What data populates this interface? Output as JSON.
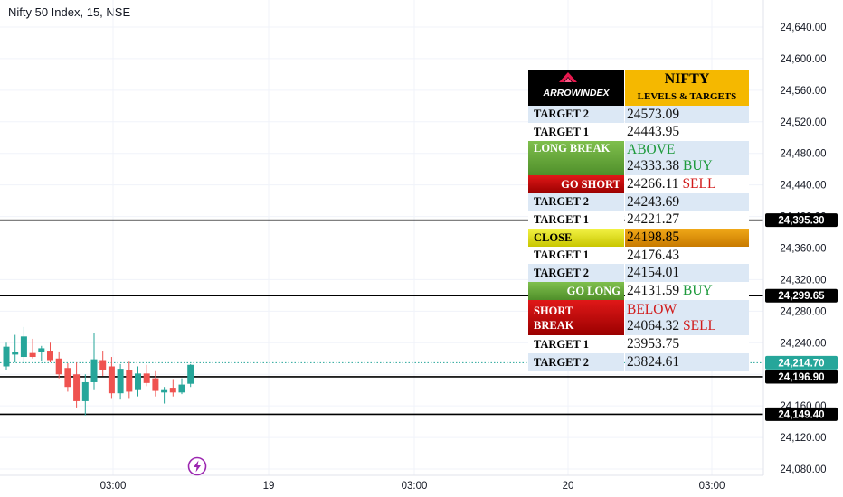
{
  "header": {
    "title": "Nifty 50 Index, 15, NSE"
  },
  "chart_data": {
    "type": "candlestick",
    "title": "Nifty 50 Index, 15, NSE",
    "y_axis": {
      "range": [
        24060,
        24660
      ],
      "ticks": [
        "24,640.00",
        "24,600.00",
        "24,560.00",
        "24,520.00",
        "24,480.00",
        "24,440.00",
        "24,400.00",
        "24,360.00",
        "24,320.00",
        "24,280.00",
        "24,240.00",
        "24,200.00",
        "24,160.00",
        "24,120.00",
        "24,080.00"
      ]
    },
    "x_axis": {
      "ticks": [
        "03:00",
        "19",
        "03:00",
        "20",
        "03:00"
      ]
    },
    "price_badges": [
      {
        "label": "24,395.30",
        "value": 24395.3,
        "color": "#000000"
      },
      {
        "label": "24,299.65",
        "value": 24299.65,
        "color": "#000000"
      },
      {
        "label": "24,214.70",
        "value": 24214.7,
        "color": "#26a69a"
      },
      {
        "label": "24,196.90",
        "value": 24196.9,
        "color": "#000000"
      },
      {
        "label": "24,149.40",
        "value": 24149.4,
        "color": "#000000"
      }
    ],
    "horizontal_lines": [
      24395.3,
      24299.65,
      24196.9,
      24149.4
    ],
    "last_price_line": 24214.7,
    "candles": [
      {
        "o": 24210,
        "h": 24240,
        "l": 24205,
        "c": 24235
      },
      {
        "o": 24225,
        "h": 24250,
        "l": 24215,
        "c": 24228
      },
      {
        "o": 24222,
        "h": 24260,
        "l": 24215,
        "c": 24248
      },
      {
        "o": 24227,
        "h": 24245,
        "l": 24220,
        "c": 24222
      },
      {
        "o": 24228,
        "h": 24236,
        "l": 24217,
        "c": 24233
      },
      {
        "o": 24230,
        "h": 24240,
        "l": 24215,
        "c": 24218
      },
      {
        "o": 24220,
        "h": 24229,
        "l": 24195,
        "c": 24200
      },
      {
        "o": 24208,
        "h": 24214,
        "l": 24178,
        "c": 24184
      },
      {
        "o": 24200,
        "h": 24215,
        "l": 24158,
        "c": 24166
      },
      {
        "o": 24166,
        "h": 24200,
        "l": 24148,
        "c": 24190
      },
      {
        "o": 24190,
        "h": 24252,
        "l": 24180,
        "c": 24219
      },
      {
        "o": 24218,
        "h": 24230,
        "l": 24198,
        "c": 24206
      },
      {
        "o": 24210,
        "h": 24222,
        "l": 24170,
        "c": 24176
      },
      {
        "o": 24176,
        "h": 24213,
        "l": 24168,
        "c": 24207
      },
      {
        "o": 24205,
        "h": 24216,
        "l": 24170,
        "c": 24178
      },
      {
        "o": 24180,
        "h": 24210,
        "l": 24172,
        "c": 24201
      },
      {
        "o": 24201,
        "h": 24212,
        "l": 24185,
        "c": 24189
      },
      {
        "o": 24195,
        "h": 24204,
        "l": 24172,
        "c": 24179
      },
      {
        "o": 24177,
        "h": 24184,
        "l": 24163,
        "c": 24180
      },
      {
        "o": 24183,
        "h": 24194,
        "l": 24172,
        "c": 24177
      },
      {
        "o": 24177,
        "h": 24195,
        "l": 24175,
        "c": 24187
      },
      {
        "o": 24188,
        "h": 24213,
        "l": 24184,
        "c": 24212
      }
    ],
    "colors": {
      "up": "#26a69a",
      "down": "#ef5350",
      "grid": "#f0f3fa"
    }
  },
  "levels_table": {
    "logo_text": "ARROWINDEX",
    "header_line1": "NIFTY",
    "header_line2": "LEVELS & TARGETS",
    "rows": [
      {
        "label": "TARGET 2",
        "value": "24573.09",
        "style": "light"
      },
      {
        "label": "TARGET 1",
        "value": "24443.95",
        "style": "white"
      },
      {
        "label": "LONG BREAK",
        "value_top": "ABOVE",
        "value": "24333.38",
        "tag": "BUY",
        "style": "longbreak"
      },
      {
        "label": "GO SHORT",
        "value": "24266.11",
        "tag": "SELL",
        "style": "goshort"
      },
      {
        "label": "TARGET 2",
        "value": "24243.69",
        "style": "light"
      },
      {
        "label": "TARGET 1",
        "value": "24221.27",
        "style": "white"
      },
      {
        "label": "CLOSE",
        "value": "24198.85",
        "style": "close"
      },
      {
        "label": "TARGET 1",
        "value": "24176.43",
        "style": "white"
      },
      {
        "label": "TARGET 2",
        "value": "24154.01",
        "style": "light"
      },
      {
        "label": "GO LONG",
        "value": "24131.59",
        "tag": "BUY",
        "style": "golong"
      },
      {
        "label": "SHORT BREAK",
        "value_top": "BELOW",
        "value": "24064.32",
        "tag": "SELL",
        "style": "shortbreak"
      },
      {
        "label": "TARGET 1",
        "value": "23953.75",
        "style": "white"
      },
      {
        "label": "TARGET 2",
        "value": "23824.61",
        "style": "light"
      }
    ]
  }
}
